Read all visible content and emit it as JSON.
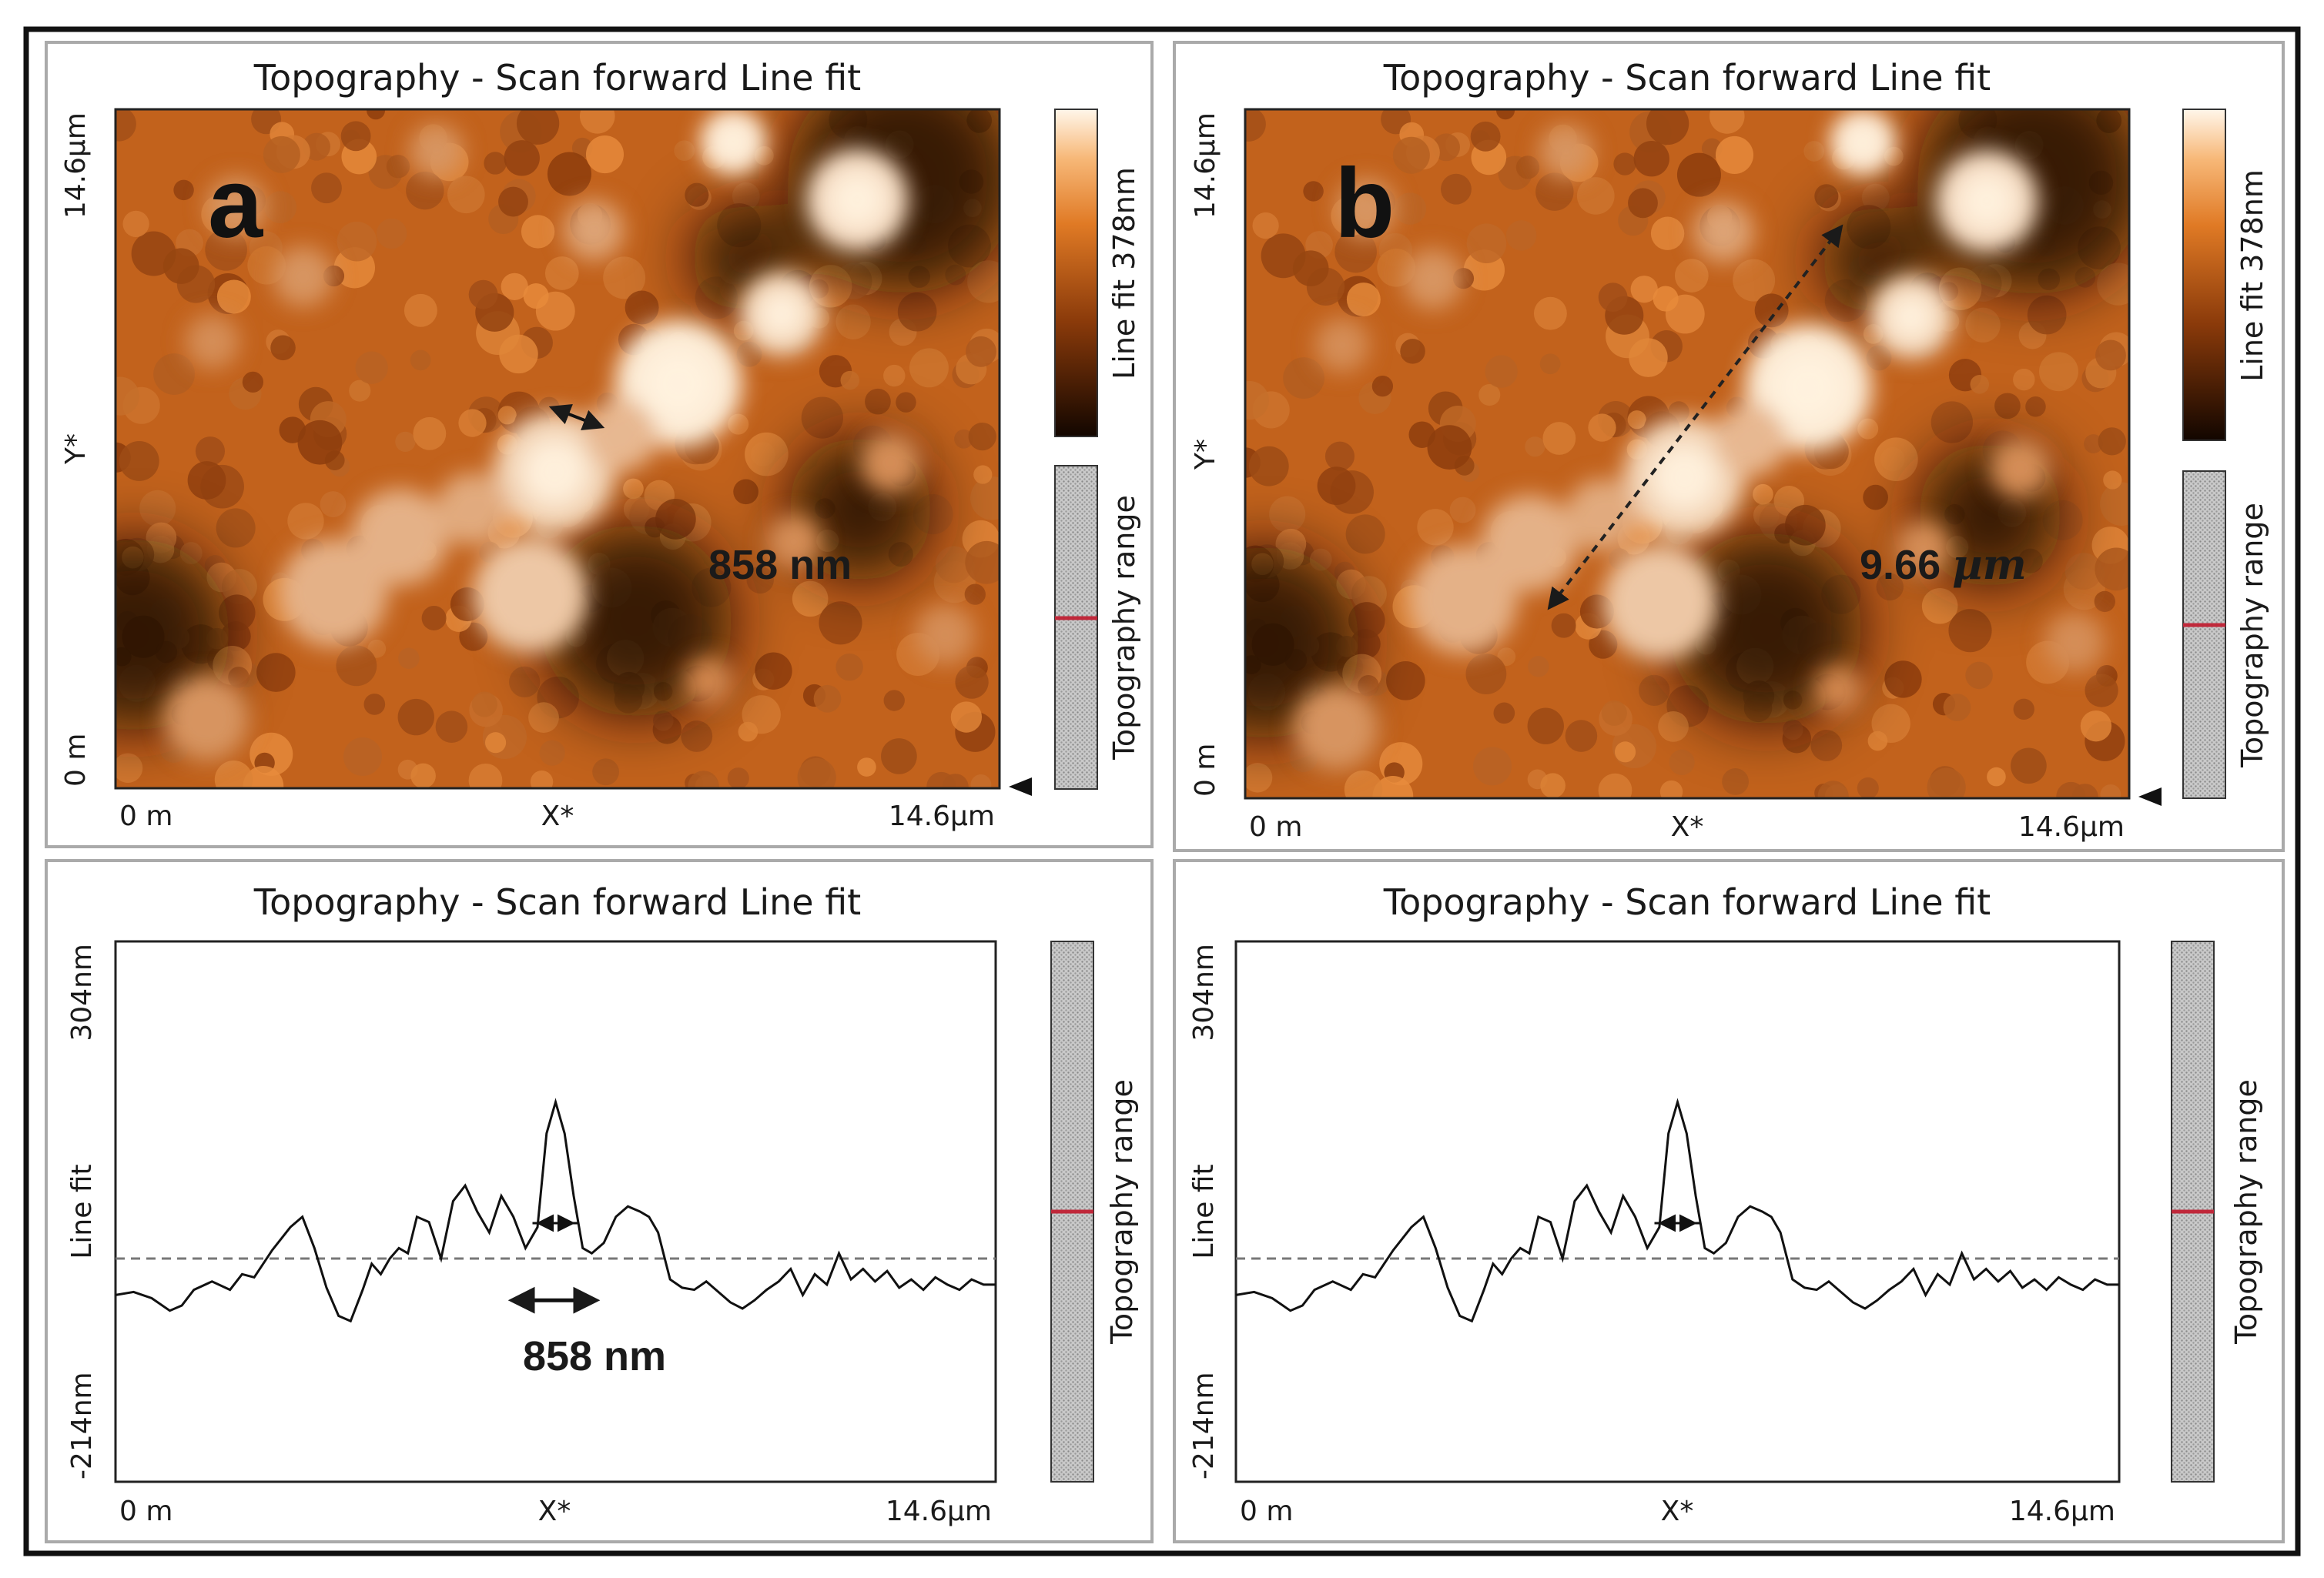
{
  "panels": {
    "a": {
      "letter": "a",
      "title": "Topography - Scan forward   Line fit",
      "x_min_label": "0 m",
      "x_mid_label": "X*",
      "x_max_label": "14.6µm",
      "y_min_label": "0 m",
      "y_mid_label": "Y*",
      "y_max_label": "14.6µm",
      "colorbar_label": "Line fit 378nm",
      "range_label": "Topography range",
      "measurement": "858 nm"
    },
    "b": {
      "letter": "b",
      "title": "Topography - Scan forward   Line fit",
      "x_min_label": "0 m",
      "x_mid_label": "X*",
      "x_max_label": "14.6µm",
      "y_min_label": "0 m",
      "y_mid_label": "Y*",
      "y_max_label": "14.6µm",
      "colorbar_label": "Line fit 378nm",
      "range_label": "Topography range",
      "measurement_value": "9.66",
      "measurement_unit": "µm"
    },
    "c": {
      "title": "Topography - Scan forward   Line fit",
      "x_min_label": "0 m",
      "x_mid_label": "X*",
      "x_max_label": "14.6µm",
      "y_max_label": "304nm",
      "y_mid_label": "Line fit",
      "y_min_label": "-214nm",
      "range_label": "Topography range",
      "measurement": "858 nm"
    },
    "d": {
      "title": "Topography - Scan forward   Line fit",
      "x_min_label": "0 m",
      "x_mid_label": "X*",
      "x_max_label": "14.6µm",
      "y_max_label": "304nm",
      "y_mid_label": "Line fit",
      "y_min_label": "-214nm",
      "range_label": "Topography range"
    }
  },
  "colors": {
    "surface_dark": "#1e0b02",
    "surface_mid": "#c2621c",
    "surface_light": "#fff2df",
    "profile_line": "#111111",
    "baseline": "#777777",
    "range_marker": "#c0283a"
  },
  "chart_data": [
    {
      "type": "heatmap",
      "title": "Topography - Scan forward   Line fit",
      "xlabel": "X*",
      "ylabel": "Y*",
      "xlim": [
        0,
        14.6
      ],
      "ylim": [
        0,
        14.6
      ],
      "unit": "µm",
      "colorbar_range_nm": [
        0,
        378
      ],
      "annotation": "858 nm",
      "measure_from_um": [
        7.35,
        8.95
      ],
      "measure_to_um": [
        8.15,
        8.55
      ],
      "grains": [
        {
          "x": 12.25,
          "y": 12.65,
          "r": 0.85,
          "h": 0.85
        },
        {
          "x": 10.2,
          "y": 13.9,
          "r": 0.55,
          "h": 0.9
        },
        {
          "x": 9.3,
          "y": 8.7,
          "r": 1.05,
          "h": 0.95
        },
        {
          "x": 7.25,
          "y": 6.8,
          "r": 1.0,
          "h": 0.8
        },
        {
          "x": 6.85,
          "y": 4.15,
          "r": 0.95,
          "h": 0.7
        },
        {
          "x": 8.35,
          "y": 7.6,
          "r": 0.6,
          "h": 0.6
        },
        {
          "x": 11.0,
          "y": 10.2,
          "r": 0.7,
          "h": 0.8
        },
        {
          "x": 3.6,
          "y": 4.2,
          "r": 0.9,
          "h": 0.55
        },
        {
          "x": 4.7,
          "y": 5.4,
          "r": 0.8,
          "h": 0.55
        },
        {
          "x": 5.9,
          "y": 6.0,
          "r": 0.6,
          "h": 0.5
        },
        {
          "x": 7.9,
          "y": 12.0,
          "r": 0.5,
          "h": 0.45
        },
        {
          "x": 2.0,
          "y": 12.5,
          "r": 0.5,
          "h": 0.35
        },
        {
          "x": 3.1,
          "y": 11.0,
          "r": 0.5,
          "h": 0.35
        },
        {
          "x": 1.6,
          "y": 9.6,
          "r": 0.45,
          "h": 0.3
        },
        {
          "x": 12.8,
          "y": 7.0,
          "r": 0.5,
          "h": 0.3
        },
        {
          "x": 13.7,
          "y": 3.3,
          "r": 0.5,
          "h": 0.3
        },
        {
          "x": 11.2,
          "y": 5.3,
          "r": 0.45,
          "h": 0.3
        },
        {
          "x": 5.3,
          "y": 13.7,
          "r": 0.45,
          "h": 0.35
        },
        {
          "x": 1.5,
          "y": 1.5,
          "r": 0.7,
          "h": 0.35
        },
        {
          "x": 9.8,
          "y": 2.3,
          "r": 0.4,
          "h": 0.25
        }
      ],
      "dark_regions": [
        {
          "x": 0.3,
          "y": 3.3,
          "r": 1.6
        },
        {
          "x": 8.6,
          "y": 3.6,
          "r": 1.6
        },
        {
          "x": 13.0,
          "y": 13.1,
          "r": 1.9
        },
        {
          "x": 12.3,
          "y": 6.0,
          "r": 1.2
        },
        {
          "x": 10.4,
          "y": 11.4,
          "r": 0.9
        }
      ]
    },
    {
      "type": "heatmap",
      "title": "Topography - Scan forward   Line fit",
      "xlabel": "X*",
      "ylabel": "Y*",
      "xlim": [
        0,
        14.6
      ],
      "ylim": [
        0,
        14.6
      ],
      "unit": "µm",
      "colorbar_range_nm": [
        0,
        378
      ],
      "annotation": "9.66 µm",
      "measure_from_um": [
        4.95,
        3.3
      ],
      "measure_to_um": [
        9.85,
        11.5
      ],
      "same_surface_as": 0
    },
    {
      "type": "line",
      "title": "Topography - Scan forward   Line fit",
      "xlabel": "X*",
      "ylabel": "Line fit",
      "xlim": [
        0,
        14.6
      ],
      "ylim": [
        -214,
        304
      ],
      "baseline_nm": 0,
      "annotation": "858 nm",
      "marker_x_um": [
        6.6,
        7.95
      ],
      "x": [
        0.0,
        0.3,
        0.6,
        0.9,
        1.1,
        1.3,
        1.6,
        1.9,
        2.1,
        2.3,
        2.6,
        2.9,
        3.1,
        3.3,
        3.5,
        3.7,
        3.9,
        4.1,
        4.25,
        4.4,
        4.55,
        4.7,
        4.85,
        5.0,
        5.2,
        5.4,
        5.6,
        5.8,
        6.0,
        6.2,
        6.4,
        6.6,
        6.8,
        7.0,
        7.15,
        7.3,
        7.45,
        7.6,
        7.75,
        7.9,
        8.1,
        8.3,
        8.5,
        8.7,
        8.85,
        9.0,
        9.2,
        9.4,
        9.6,
        9.8,
        10.0,
        10.2,
        10.4,
        10.6,
        10.8,
        11.0,
        11.2,
        11.4,
        11.6,
        11.8,
        12.0,
        12.2,
        12.4,
        12.6,
        12.8,
        13.0,
        13.2,
        13.4,
        13.6,
        13.8,
        14.0,
        14.2,
        14.4,
        14.6
      ],
      "y": [
        -35,
        -32,
        -38,
        -50,
        -45,
        -30,
        -22,
        -30,
        -15,
        -18,
        8,
        30,
        40,
        10,
        -28,
        -55,
        -60,
        -30,
        -5,
        -15,
        0,
        10,
        5,
        40,
        35,
        0,
        55,
        70,
        45,
        25,
        60,
        40,
        10,
        30,
        120,
        150,
        120,
        60,
        10,
        5,
        15,
        40,
        50,
        45,
        40,
        25,
        -20,
        -28,
        -30,
        -22,
        -32,
        -42,
        -48,
        -40,
        -30,
        -22,
        -10,
        -35,
        -15,
        -25,
        5,
        -20,
        -10,
        -22,
        -12,
        -28,
        -20,
        -30,
        -18,
        -25,
        -30,
        -20,
        -25,
        -25
      ]
    },
    {
      "type": "line",
      "title": "Topography - Scan forward   Line fit",
      "xlabel": "X*",
      "ylabel": "Line fit",
      "xlim": [
        0,
        14.6
      ],
      "ylim": [
        -214,
        304
      ],
      "baseline_nm": 0,
      "same_profile_as": 2
    }
  ]
}
